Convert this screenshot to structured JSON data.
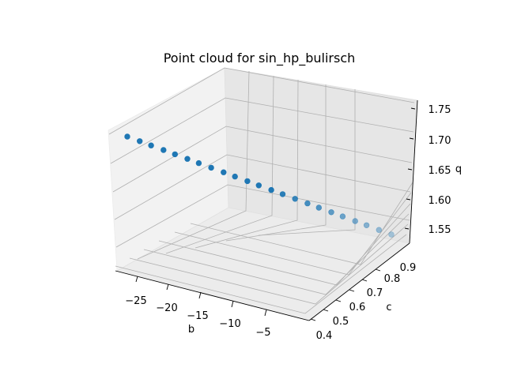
{
  "chart_data": {
    "type": "scatter3d",
    "title": "Point cloud for sin_hp_bulirsch",
    "xlabel": "b",
    "ylabel": "c",
    "zlabel": "q",
    "xticks": [
      "−25",
      "−20",
      "−15",
      "−10",
      "−5"
    ],
    "yticks": [
      "0.4",
      "0.5",
      "0.6",
      "0.7",
      "0.8",
      "0.9"
    ],
    "zticks": [
      "1.55",
      "1.60",
      "1.65",
      "1.70",
      "1.75"
    ],
    "xlim": [
      -28,
      -1
    ],
    "ylim": [
      0.4,
      0.95
    ],
    "zlim": [
      1.53,
      1.77
    ],
    "grid": true,
    "marker_color": "#1f77b4",
    "points": [
      {
        "b": -27.5,
        "c": 0.4,
        "q": 1.7
      },
      {
        "b": -26.3,
        "c": 0.42,
        "q": 1.694
      },
      {
        "b": -25.2,
        "c": 0.44,
        "q": 1.688
      },
      {
        "b": -24.0,
        "c": 0.46,
        "q": 1.682
      },
      {
        "b": -22.9,
        "c": 0.48,
        "q": 1.676
      },
      {
        "b": -21.7,
        "c": 0.5,
        "q": 1.67
      },
      {
        "b": -20.6,
        "c": 0.52,
        "q": 1.664
      },
      {
        "b": -19.4,
        "c": 0.54,
        "q": 1.658
      },
      {
        "b": -18.2,
        "c": 0.56,
        "q": 1.652
      },
      {
        "b": -17.1,
        "c": 0.58,
        "q": 1.646
      },
      {
        "b": -15.9,
        "c": 0.6,
        "q": 1.64
      },
      {
        "b": -14.8,
        "c": 0.62,
        "q": 1.634
      },
      {
        "b": -13.6,
        "c": 0.64,
        "q": 1.628
      },
      {
        "b": -12.5,
        "c": 0.66,
        "q": 1.622
      },
      {
        "b": -11.3,
        "c": 0.68,
        "q": 1.616
      },
      {
        "b": -10.1,
        "c": 0.7,
        "q": 1.61
      },
      {
        "b": -9.0,
        "c": 0.72,
        "q": 1.604
      },
      {
        "b": -7.8,
        "c": 0.74,
        "q": 1.598
      },
      {
        "b": -6.7,
        "c": 0.76,
        "q": 1.592
      },
      {
        "b": -5.5,
        "c": 0.78,
        "q": 1.586
      },
      {
        "b": -4.4,
        "c": 0.8,
        "q": 1.58
      },
      {
        "b": -3.2,
        "c": 0.82,
        "q": 1.574
      },
      {
        "b": -2.0,
        "c": 0.84,
        "q": 1.568
      }
    ]
  }
}
